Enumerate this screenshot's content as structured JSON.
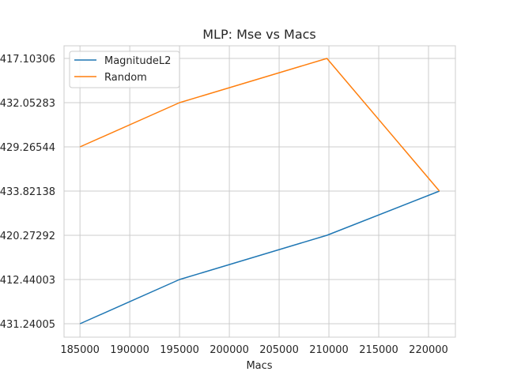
{
  "chart_data": {
    "type": "line",
    "title": "MLP: Mse vs Macs",
    "xlabel": "Macs",
    "ylabel": "",
    "xlim": [
      183400,
      222700
    ],
    "x_ticks": [
      185000,
      190000,
      195000,
      200000,
      205000,
      210000,
      215000,
      220000
    ],
    "y_categories": [
      "431.24005",
      "412.44003",
      "420.27292",
      "433.82138",
      "429.26544",
      "432.05283",
      "417.10306"
    ],
    "grid": true,
    "legend_position": "top-left",
    "series": [
      {
        "name": "MagnitudeL2",
        "color": "#1f77b4",
        "x": [
          185000,
          195000,
          209800,
          221100
        ],
        "y": [
          "431.24005",
          "412.44003",
          "420.27292",
          "433.82138"
        ]
      },
      {
        "name": "Random",
        "color": "#ff7f0e",
        "x": [
          185000,
          195000,
          209800,
          221100
        ],
        "y": [
          "429.26544",
          "432.05283",
          "417.10306",
          "433.82138"
        ]
      }
    ]
  }
}
